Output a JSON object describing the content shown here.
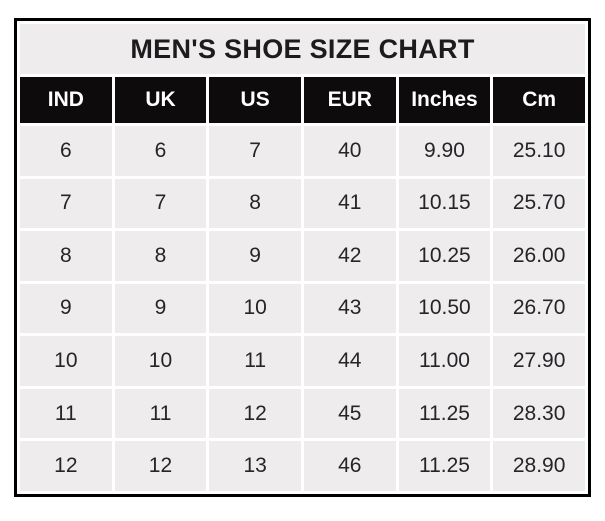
{
  "title": "MEN'S SHOE SIZE CHART",
  "colors": {
    "page_bg": "#ffffff",
    "cell_bg": "#eeecec",
    "header_bg": "#0d0b0c",
    "header_text": "#ffffff",
    "cell_text": "#262428",
    "grid_line": "#ffffff",
    "outer_border": "#000000"
  },
  "chart_data": {
    "type": "table",
    "title": "MEN'S SHOE SIZE CHART",
    "columns": [
      "IND",
      "UK",
      "US",
      "EUR",
      "Inches",
      "Cm"
    ],
    "rows": [
      [
        "6",
        "6",
        "7",
        "40",
        "9.90",
        "25.10"
      ],
      [
        "7",
        "7",
        "8",
        "41",
        "10.15",
        "25.70"
      ],
      [
        "8",
        "8",
        "9",
        "42",
        "10.25",
        "26.00"
      ],
      [
        "9",
        "9",
        "10",
        "43",
        "10.50",
        "26.70"
      ],
      [
        "10",
        "10",
        "11",
        "44",
        "11.00",
        "27.90"
      ],
      [
        "11",
        "11",
        "12",
        "45",
        "11.25",
        "28.30"
      ],
      [
        "12",
        "12",
        "13",
        "46",
        "11.25",
        "28.90"
      ]
    ],
    "layout": {
      "grid": "white gridlines between gray cells",
      "legend": "none",
      "header_style": "black background, white bold text"
    }
  }
}
